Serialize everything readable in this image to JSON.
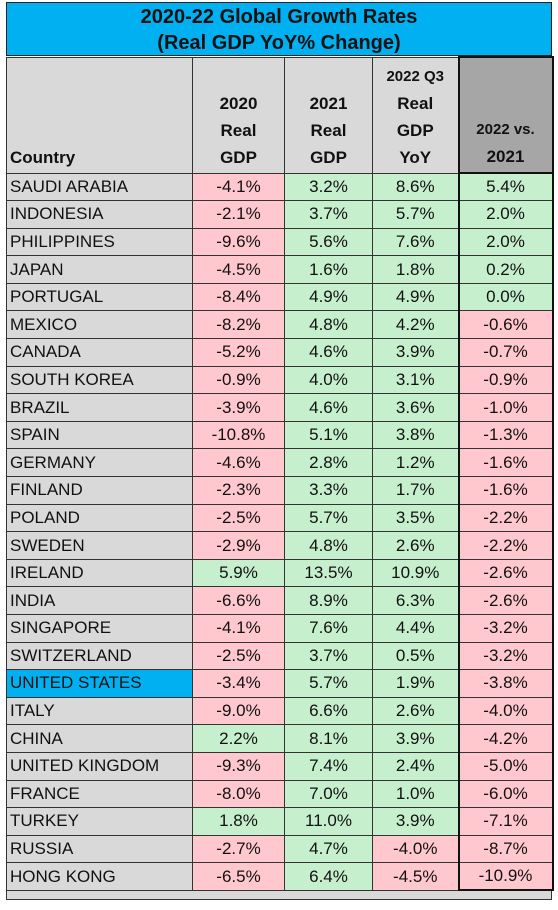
{
  "chart_data": {
    "type": "table",
    "title": "2020-22 Global Growth Rates",
    "subtitle": "(Real GDP YoY% Change)",
    "columns": [
      {
        "key": "country",
        "lines": [
          "Country"
        ]
      },
      {
        "key": "gdp2020",
        "lines": [
          "2020",
          "Real",
          "GDP"
        ]
      },
      {
        "key": "gdp2021",
        "lines": [
          "2021",
          "Real",
          "GDP"
        ]
      },
      {
        "key": "gdp2022q3",
        "lines": [
          "2022 Q3",
          "Real",
          "GDP",
          "YoY"
        ]
      },
      {
        "key": "diff",
        "lines": [
          "2022 vs.",
          "2021"
        ]
      }
    ],
    "highlight_country": "UNITED STATES",
    "colors": {
      "positive": "#c6efce",
      "negative": "#ffc7ce",
      "header": "#d9d9d9",
      "title": "#00b0f0",
      "diff_header": "#a6a6a6",
      "highlight": "#00b0f0"
    },
    "rows": [
      {
        "country": "SAUDI ARABIA",
        "gdp2020": -4.1,
        "gdp2021": 3.2,
        "gdp2022q3": 8.6,
        "diff": 5.4
      },
      {
        "country": "INDONESIA",
        "gdp2020": -2.1,
        "gdp2021": 3.7,
        "gdp2022q3": 5.7,
        "diff": 2.0
      },
      {
        "country": "PHILIPPINES",
        "gdp2020": -9.6,
        "gdp2021": 5.6,
        "gdp2022q3": 7.6,
        "diff": 2.0
      },
      {
        "country": "JAPAN",
        "gdp2020": -4.5,
        "gdp2021": 1.6,
        "gdp2022q3": 1.8,
        "diff": 0.2
      },
      {
        "country": "PORTUGAL",
        "gdp2020": -8.4,
        "gdp2021": 4.9,
        "gdp2022q3": 4.9,
        "diff": 0.0
      },
      {
        "country": "MEXICO",
        "gdp2020": -8.2,
        "gdp2021": 4.8,
        "gdp2022q3": 4.2,
        "diff": -0.6
      },
      {
        "country": "CANADA",
        "gdp2020": -5.2,
        "gdp2021": 4.6,
        "gdp2022q3": 3.9,
        "diff": -0.7
      },
      {
        "country": "SOUTH KOREA",
        "gdp2020": -0.9,
        "gdp2021": 4.0,
        "gdp2022q3": 3.1,
        "diff": -0.9
      },
      {
        "country": "BRAZIL",
        "gdp2020": -3.9,
        "gdp2021": 4.6,
        "gdp2022q3": 3.6,
        "diff": -1.0
      },
      {
        "country": "SPAIN",
        "gdp2020": -10.8,
        "gdp2021": 5.1,
        "gdp2022q3": 3.8,
        "diff": -1.3
      },
      {
        "country": "GERMANY",
        "gdp2020": -4.6,
        "gdp2021": 2.8,
        "gdp2022q3": 1.2,
        "diff": -1.6
      },
      {
        "country": "FINLAND",
        "gdp2020": -2.3,
        "gdp2021": 3.3,
        "gdp2022q3": 1.7,
        "diff": -1.6
      },
      {
        "country": "POLAND",
        "gdp2020": -2.5,
        "gdp2021": 5.7,
        "gdp2022q3": 3.5,
        "diff": -2.2
      },
      {
        "country": "SWEDEN",
        "gdp2020": -2.9,
        "gdp2021": 4.8,
        "gdp2022q3": 2.6,
        "diff": -2.2
      },
      {
        "country": "IRELAND",
        "gdp2020": 5.9,
        "gdp2021": 13.5,
        "gdp2022q3": 10.9,
        "diff": -2.6
      },
      {
        "country": "INDIA",
        "gdp2020": -6.6,
        "gdp2021": 8.9,
        "gdp2022q3": 6.3,
        "diff": -2.6
      },
      {
        "country": "SINGAPORE",
        "gdp2020": -4.1,
        "gdp2021": 7.6,
        "gdp2022q3": 4.4,
        "diff": -3.2
      },
      {
        "country": "SWITZERLAND",
        "gdp2020": -2.5,
        "gdp2021": 3.7,
        "gdp2022q3": 0.5,
        "diff": -3.2
      },
      {
        "country": "UNITED STATES",
        "gdp2020": -3.4,
        "gdp2021": 5.7,
        "gdp2022q3": 1.9,
        "diff": -3.8
      },
      {
        "country": "ITALY",
        "gdp2020": -9.0,
        "gdp2021": 6.6,
        "gdp2022q3": 2.6,
        "diff": -4.0
      },
      {
        "country": "CHINA",
        "gdp2020": 2.2,
        "gdp2021": 8.1,
        "gdp2022q3": 3.9,
        "diff": -4.2
      },
      {
        "country": "UNITED KINGDOM",
        "gdp2020": -9.3,
        "gdp2021": 7.4,
        "gdp2022q3": 2.4,
        "diff": -5.0
      },
      {
        "country": "FRANCE",
        "gdp2020": -8.0,
        "gdp2021": 7.0,
        "gdp2022q3": 1.0,
        "diff": -6.0
      },
      {
        "country": "TURKEY",
        "gdp2020": 1.8,
        "gdp2021": 11.0,
        "gdp2022q3": 3.9,
        "diff": -7.1
      },
      {
        "country": "RUSSIA",
        "gdp2020": -2.7,
        "gdp2021": 4.7,
        "gdp2022q3": -4.0,
        "diff": -8.7
      },
      {
        "country": "HONG KONG",
        "gdp2020": -6.5,
        "gdp2021": 6.4,
        "gdp2022q3": -4.5,
        "diff": -10.9
      }
    ]
  }
}
